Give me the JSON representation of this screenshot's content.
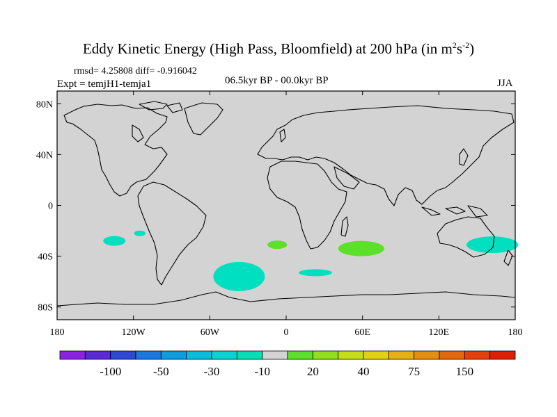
{
  "title": {
    "main": "Eddy Kinetic Energy (High Pass, Bloomfield) at 200 hPa (in m",
    "sup1": "2",
    "mid": "s",
    "sup2": "-2",
    "close": ")"
  },
  "stats": "rmsd= 4.25808 diff= -0.916042",
  "experiment": "Expt = temjH1-temja1",
  "period": "06.5kyr BP - 00.0kyr BP",
  "season": "JJA",
  "map": {
    "lat_labels": [
      "80N",
      "40N",
      "0",
      "40S",
      "80S"
    ],
    "lat_values": [
      80,
      40,
      0,
      -40,
      -80
    ],
    "lon_labels": [
      "180",
      "120W",
      "60W",
      "0",
      "60E",
      "120E",
      "180"
    ],
    "lon_values": [
      -180,
      -120,
      -60,
      0,
      60,
      120,
      180
    ],
    "lon_range": [
      -180,
      180
    ],
    "lat_range": [
      -90,
      90
    ],
    "ocean_color": "#d3d3d3",
    "coast_color": "#000000"
  },
  "anomaly_regions": [
    {
      "name": "south-pacific-west",
      "lon": -135,
      "lat": -28,
      "class": "-10",
      "color": "#00e0c0"
    },
    {
      "name": "south-pacific-small",
      "lon": -115,
      "lat": -22,
      "class": "-10",
      "color": "#00e0c0"
    },
    {
      "name": "south-atlantic-west",
      "lon": -37,
      "lat": -56,
      "class": "-10",
      "color": "#00e0c0"
    },
    {
      "name": "south-atlantic-east",
      "lon": -7,
      "lat": -31,
      "class": "20",
      "color": "#5ce02a"
    },
    {
      "name": "south-indian-west",
      "lon": 59,
      "lat": -34,
      "class": "20",
      "color": "#5ce02a"
    },
    {
      "name": "southern-ocean",
      "lon": 23,
      "lat": -53,
      "class": "-10",
      "color": "#00e0c0"
    },
    {
      "name": "tasman-sea",
      "lon": 162,
      "lat": -31,
      "class": "-10",
      "color": "#00e0c0"
    }
  ],
  "colorbar": {
    "colors": [
      "#8a22e6",
      "#5a2ad8",
      "#2e48d6",
      "#1a78e0",
      "#0c9ce0",
      "#06bedc",
      "#05d4d2",
      "#00e0b4",
      "#d3d3d3",
      "#5ce02a",
      "#92e01c",
      "#c4e014",
      "#e4d012",
      "#e6b010",
      "#e68e0e",
      "#e6680c",
      "#e6400a",
      "#e01e06"
    ],
    "labels": [
      "-100",
      "-50",
      "-30",
      "-10",
      "20",
      "40",
      "75",
      "150"
    ],
    "label_boundaries": [
      2,
      4,
      6,
      8,
      10,
      12,
      14,
      16
    ]
  }
}
